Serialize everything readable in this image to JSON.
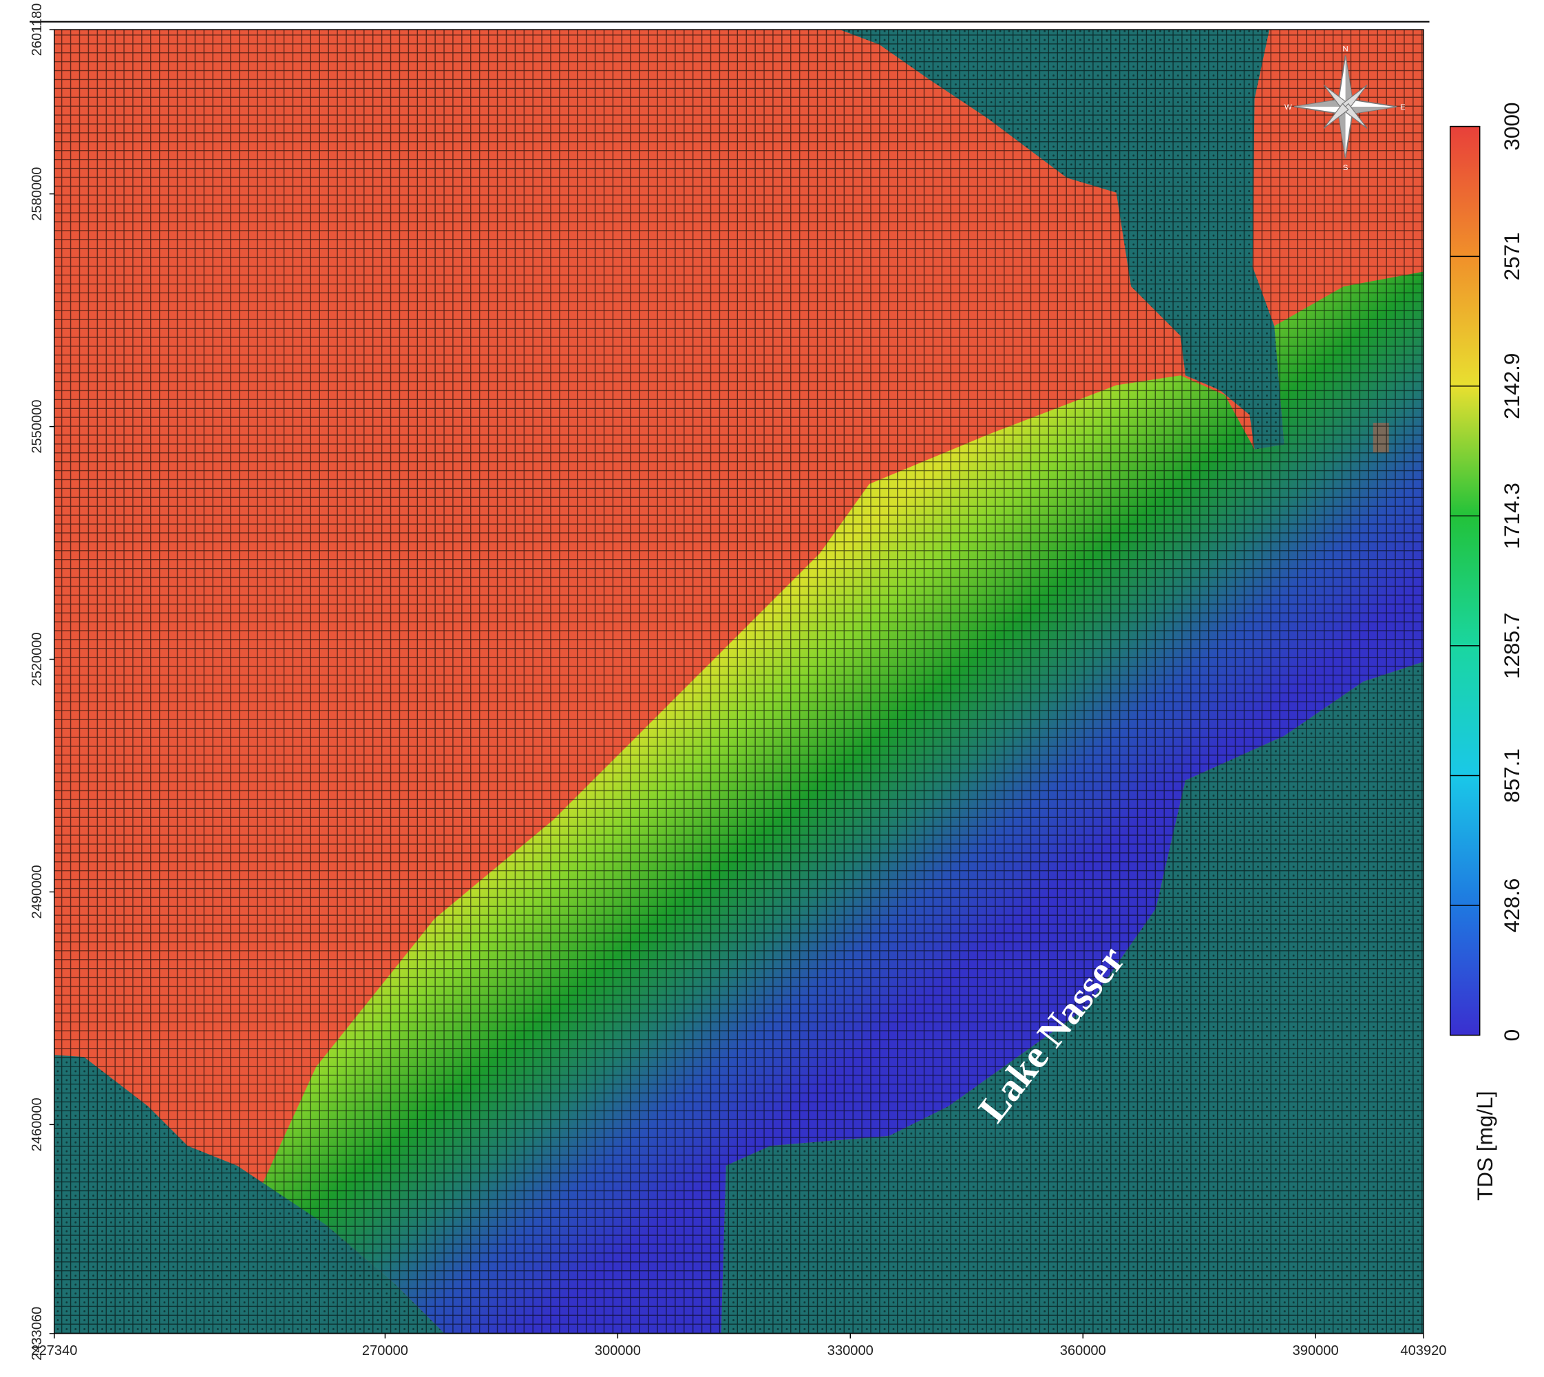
{
  "map": {
    "xlim": [
      227340,
      403920
    ],
    "ylim": [
      2433060,
      2601180
    ],
    "xticks": [
      227340,
      270000,
      300000,
      330000,
      360000,
      390000,
      403920
    ],
    "yticks": [
      2433060,
      2460000,
      2490000,
      2520000,
      2550000,
      2580000,
      2601180
    ],
    "annotation": "Lake Nasser",
    "compass": [
      "N",
      "E",
      "S",
      "W"
    ]
  },
  "colorbar": {
    "label": "TDS [mg/L]",
    "lim": [
      0,
      3000
    ],
    "ticks": [
      0,
      428.6,
      857.1,
      1285.7,
      1714.3,
      2142.9,
      2571,
      3000
    ],
    "colors": [
      "#3a2fd0",
      "#1f78e0",
      "#1ac8e8",
      "#1ad6a0",
      "#22c23a",
      "#e8e030",
      "#f0902a",
      "#e8403a"
    ]
  }
}
